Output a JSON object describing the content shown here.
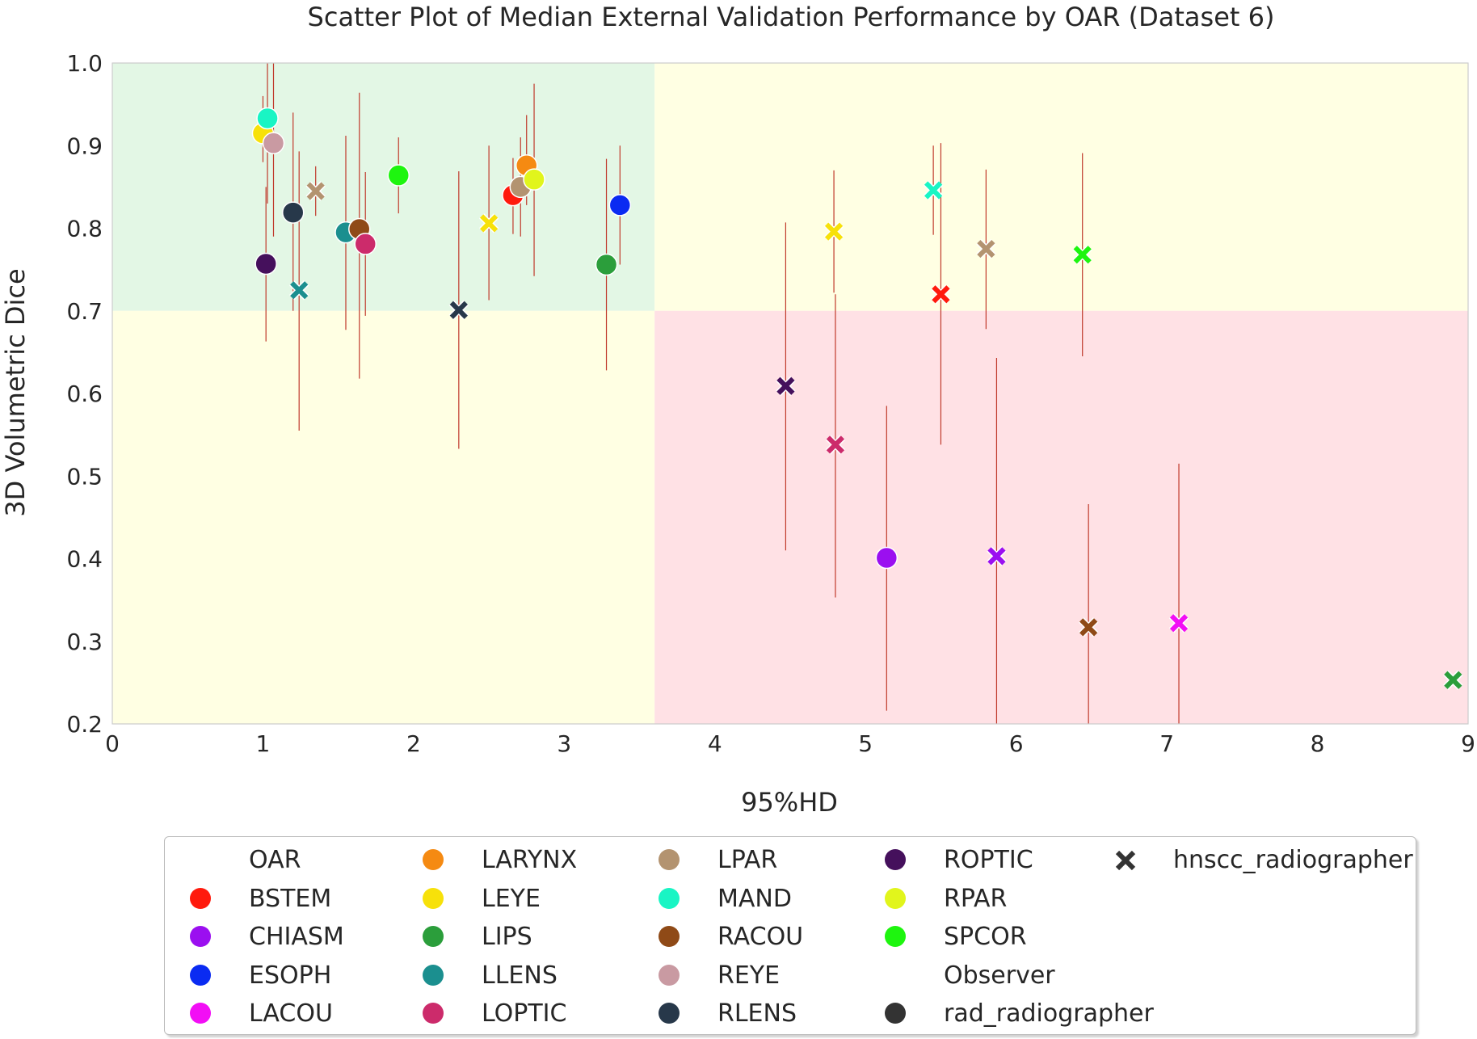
{
  "chart_data": {
    "type": "scatter",
    "title": "Scatter Plot of Median External Validation Performance by OAR (Dataset 6)",
    "xlabel": "95%HD",
    "ylabel": "3D Volumetric Dice",
    "xlim": [
      0,
      9
    ],
    "ylim": [
      0.2,
      1.0
    ],
    "xticks": [
      "0",
      "1",
      "2",
      "3",
      "4",
      "5",
      "6",
      "7",
      "8",
      "9"
    ],
    "yticks": [
      "0.2",
      "0.3",
      "0.4",
      "0.5",
      "0.6",
      "0.7",
      "0.8",
      "0.9",
      "1.0"
    ],
    "grid": false,
    "regions": [
      {
        "x": [
          0,
          3.6
        ],
        "y": [
          0.7,
          1.0
        ],
        "color": "#e3f7e5"
      },
      {
        "x": [
          3.6,
          9
        ],
        "y": [
          0.7,
          1.0
        ],
        "color": "#ffffe3"
      },
      {
        "x": [
          0,
          3.6
        ],
        "y": [
          0.2,
          0.7
        ],
        "color": "#ffffe3"
      },
      {
        "x": [
          3.6,
          9
        ],
        "y": [
          0.2,
          0.7
        ],
        "color": "#ffe1e5"
      }
    ],
    "errorbar_color": "#c0392b",
    "legend": {
      "placement": "bottom-center",
      "oar_title": "OAR",
      "observer_title": "Observer",
      "oars": [
        {
          "name": "BSTEM",
          "color": "#ff1a0d"
        },
        {
          "name": "CHIASM",
          "color": "#9b0ff0"
        },
        {
          "name": "ESOPH",
          "color": "#0a2bf2"
        },
        {
          "name": "LACOU",
          "color": "#f20ef5"
        },
        {
          "name": "LARYNX",
          "color": "#f58a12"
        },
        {
          "name": "LEYE",
          "color": "#f7e10a"
        },
        {
          "name": "LIPS",
          "color": "#2b9e3b"
        },
        {
          "name": "LLENS",
          "color": "#1b8f8f"
        },
        {
          "name": "LOPTIC",
          "color": "#cc2b6b"
        },
        {
          "name": "LPAR",
          "color": "#b39370"
        },
        {
          "name": "MAND",
          "color": "#19f5c4"
        },
        {
          "name": "RACOU",
          "color": "#8f4a17"
        },
        {
          "name": "REYE",
          "color": "#c99aa2"
        },
        {
          "name": "RLENS",
          "color": "#27384a"
        },
        {
          "name": "ROPTIC",
          "color": "#45105c"
        },
        {
          "name": "RPAR",
          "color": "#e1f51c"
        },
        {
          "name": "SPCOR",
          "color": "#1ef50f"
        }
      ],
      "observers": [
        {
          "name": "rad_radiographer",
          "marker": "circle"
        },
        {
          "name": "hnscc_radiographer",
          "marker": "x"
        }
      ]
    },
    "series": [
      {
        "name": "rad_radiographer",
        "marker": "circle",
        "points": [
          {
            "oar": "LEYE",
            "x": 1.0,
            "y": 0.915,
            "err": [
              0.88,
              0.96
            ]
          },
          {
            "oar": "MAND",
            "x": 1.03,
            "y": 0.933,
            "err": [
              0.83,
              1.0
            ]
          },
          {
            "oar": "REYE",
            "x": 1.07,
            "y": 0.903,
            "err": [
              0.79,
              1.0
            ]
          },
          {
            "oar": "ROPTIC",
            "x": 1.02,
            "y": 0.757,
            "err": [
              0.663,
              0.85
            ]
          },
          {
            "oar": "RLENS",
            "x": 1.2,
            "y": 0.819,
            "err": [
              0.7,
              0.94
            ]
          },
          {
            "oar": "LLENS",
            "x": 1.55,
            "y": 0.795,
            "err": [
              0.677,
              0.912
            ]
          },
          {
            "oar": "RACOU",
            "x": 1.64,
            "y": 0.799,
            "err": [
              0.618,
              0.964
            ]
          },
          {
            "oar": "LOPTIC",
            "x": 1.68,
            "y": 0.781,
            "err": [
              0.694,
              0.868
            ]
          },
          {
            "oar": "SPCOR",
            "x": 1.9,
            "y": 0.864,
            "err": [
              0.818,
              0.91
            ]
          },
          {
            "oar": "BSTEM",
            "x": 2.66,
            "y": 0.84,
            "err": [
              0.793,
              0.885
            ]
          },
          {
            "oar": "LARYNX",
            "x": 2.75,
            "y": 0.876,
            "err": [
              0.828,
              0.937
            ]
          },
          {
            "oar": "LPAR",
            "x": 2.71,
            "y": 0.85,
            "err": [
              0.79,
              0.91
            ]
          },
          {
            "oar": "RPAR",
            "x": 2.8,
            "y": 0.859,
            "err": [
              0.742,
              0.975
            ]
          },
          {
            "oar": "LIPS",
            "x": 3.28,
            "y": 0.756,
            "err": [
              0.628,
              0.884
            ]
          },
          {
            "oar": "ESOPH",
            "x": 3.37,
            "y": 0.828,
            "err": [
              0.756,
              0.9
            ]
          },
          {
            "oar": "CHIASM",
            "x": 5.14,
            "y": 0.401,
            "err": [
              0.216,
              0.585
            ]
          }
        ]
      },
      {
        "name": "hnscc_radiographer",
        "marker": "x",
        "points": [
          {
            "oar": "LPAR",
            "x": 1.35,
            "y": 0.845,
            "err": [
              0.815,
              0.875
            ]
          },
          {
            "oar": "LLENS",
            "x": 1.24,
            "y": 0.725,
            "err": [
              0.555,
              0.893
            ]
          },
          {
            "oar": "RLENS",
            "x": 2.3,
            "y": 0.701,
            "err": [
              0.533,
              0.869
            ]
          },
          {
            "oar": "LEYE",
            "x": 2.5,
            "y": 0.806,
            "err": [
              0.713,
              0.9
            ]
          },
          {
            "oar": "ROPTIC",
            "x": 4.47,
            "y": 0.609,
            "err": [
              0.41,
              0.807
            ]
          },
          {
            "oar": "LOPTIC",
            "x": 4.8,
            "y": 0.538,
            "err": [
              0.353,
              0.72
            ]
          },
          {
            "oar": "LEYE",
            "x": 4.79,
            "y": 0.796,
            "err": [
              0.722,
              0.87
            ]
          },
          {
            "oar": "MAND",
            "x": 5.45,
            "y": 0.846,
            "err": [
              0.792,
              0.9
            ]
          },
          {
            "oar": "BSTEM",
            "x": 5.5,
            "y": 0.72,
            "err": [
              0.538,
              0.903
            ]
          },
          {
            "oar": "LPAR",
            "x": 5.8,
            "y": 0.775,
            "err": [
              0.678,
              0.871
            ]
          },
          {
            "oar": "CHIASM",
            "x": 5.87,
            "y": 0.403,
            "err": [
              0.2,
              0.643
            ]
          },
          {
            "oar": "SPCOR",
            "x": 6.44,
            "y": 0.768,
            "err": [
              0.645,
              0.891
            ]
          },
          {
            "oar": "RACOU",
            "x": 6.48,
            "y": 0.317,
            "err": [
              0.2,
              0.466
            ]
          },
          {
            "oar": "LACOU",
            "x": 7.08,
            "y": 0.322,
            "err": [
              0.2,
              0.515
            ]
          },
          {
            "oar": "LIPS",
            "x": 8.9,
            "y": 0.253,
            "err": null
          }
        ]
      }
    ]
  }
}
